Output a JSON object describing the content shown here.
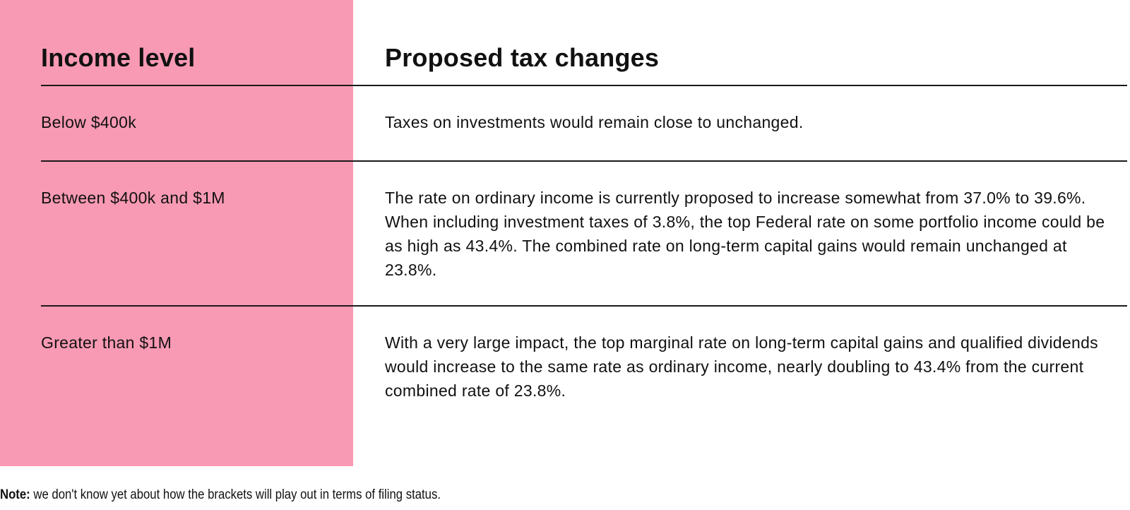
{
  "table": {
    "headers": {
      "income_level": "Income level",
      "proposed_changes": "Proposed tax changes"
    },
    "rows": [
      {
        "income": "Below $400k",
        "change": "Taxes on investments would remain close to unchanged."
      },
      {
        "income": "Between $400k and $1M",
        "change": "The rate on ordinary income is currently proposed to increase somewhat from 37.0% to 39.6%. When including investment taxes of 3.8%, the top Federal rate on some portfolio income could be as high as 43.4%. The combined rate on long-term capital gains would remain unchanged at 23.8%."
      },
      {
        "income": "Greater than $1M",
        "change": "With a very large impact, the top marginal rate on long-term capital gains and qualified dividends would increase to the same rate as ordinary income, nearly doubling to 43.4% from the current combined rate of 23.8%."
      }
    ]
  },
  "note": {
    "label": "Note:",
    "text": " we don't know yet about how the brackets will play out in terms of filing status."
  },
  "colors": {
    "accent_pink": "#f99ab4",
    "rule": "#1a1a1a",
    "text": "#111111"
  }
}
